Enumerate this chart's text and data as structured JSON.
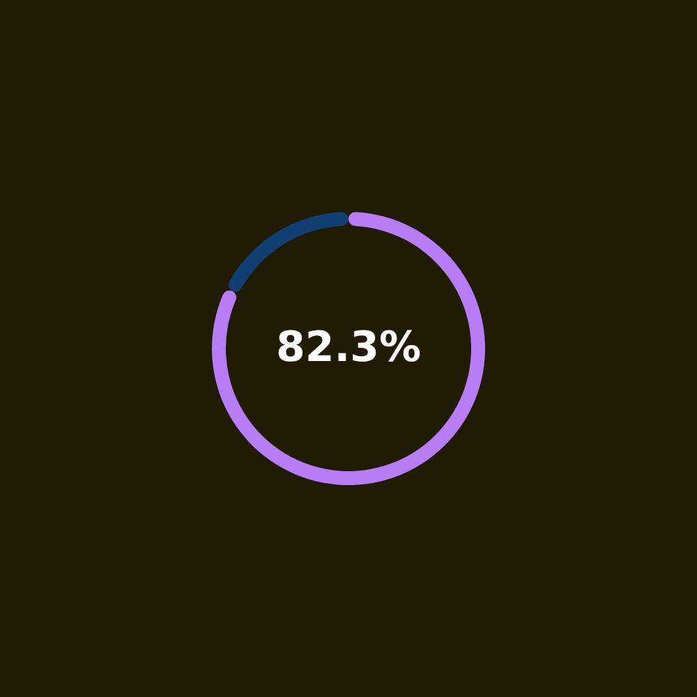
{
  "chart_data": {
    "type": "donut",
    "categories": [
      null,
      null
    ],
    "values": [
      82.3,
      17.7
    ],
    "colors": [
      "#b87cf4",
      "#123f72"
    ],
    "annotations": [
      "82.3%"
    ]
  }
}
